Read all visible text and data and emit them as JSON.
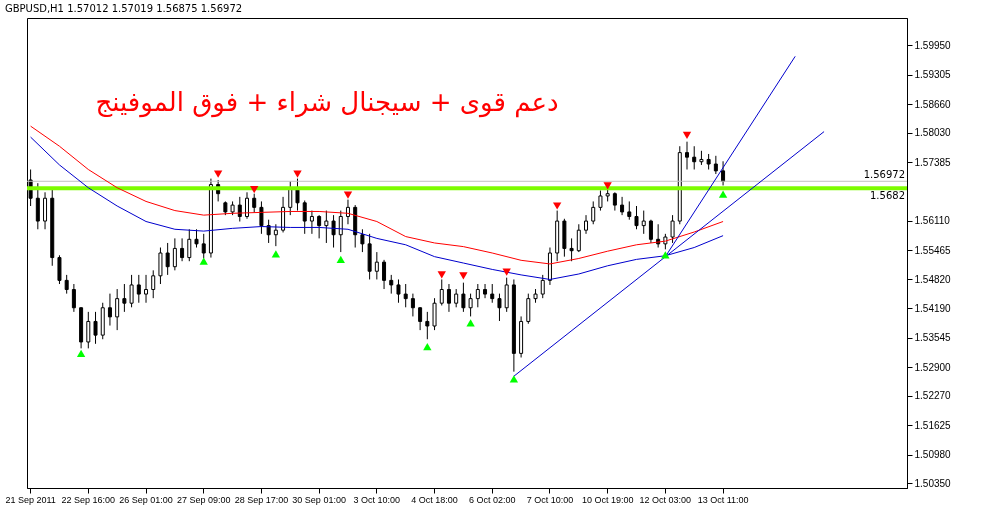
{
  "chart_data": {
    "type": "candlestick",
    "title": "GBPUSD,H1  1.57012 1.57019 1.56875 1.56972",
    "annotations": [
      "دعم قوى + سيجنال شراء + فوق الموفينج"
    ],
    "categories": [
      "21 Sep 2011",
      null,
      null,
      null,
      null,
      null,
      null,
      null,
      "22 Sep 16:00",
      null,
      null,
      null,
      null,
      null,
      null,
      null,
      "26 Sep 01:00",
      null,
      null,
      null,
      null,
      null,
      null,
      null,
      "27 Sep 09:00",
      null,
      null,
      null,
      null,
      null,
      null,
      null,
      "28 Sep 17:00",
      null,
      null,
      null,
      null,
      null,
      null,
      null,
      "30 Sep 01:00",
      null,
      null,
      null,
      null,
      null,
      null,
      null,
      "3 Oct 10:00",
      null,
      null,
      null,
      null,
      null,
      null,
      null,
      "4 Oct 18:00",
      null,
      null,
      null,
      null,
      null,
      null,
      null,
      "6 Oct 02:00",
      null,
      null,
      null,
      null,
      null,
      null,
      null,
      "7 Oct 10:00",
      null,
      null,
      null,
      null,
      null,
      null,
      null,
      "10 Oct 19:00",
      null,
      null,
      null,
      null,
      null,
      null,
      null,
      "12 Oct 03:00",
      null,
      null,
      null,
      null,
      null,
      null,
      null,
      "13 Oct 11:00",
      null,
      null,
      null,
      null,
      null,
      null,
      null,
      null,
      null,
      null,
      null,
      null,
      null,
      null,
      null,
      null,
      null,
      null,
      null,
      null,
      null,
      null,
      null,
      null,
      null
    ],
    "ohlc": [
      [
        1.57,
        1.5723,
        1.5643,
        1.566
      ],
      [
        1.566,
        1.5693,
        1.5592,
        1.561
      ],
      [
        1.561,
        1.5673,
        1.5592,
        1.566
      ],
      [
        1.566,
        1.5683,
        1.5512,
        1.553
      ],
      [
        1.553,
        1.5535,
        1.5472,
        1.548
      ],
      [
        1.548,
        1.5492,
        1.5451,
        1.546
      ],
      [
        1.546,
        1.5472,
        1.5411,
        1.542
      ],
      [
        1.542,
        1.5421,
        1.5331,
        1.5345
      ],
      [
        1.5345,
        1.5411,
        1.5331,
        1.539
      ],
      [
        1.539,
        1.5411,
        1.5341,
        1.536
      ],
      [
        1.536,
        1.5431,
        1.5351,
        1.542
      ],
      [
        1.542,
        1.5451,
        1.5381,
        1.54
      ],
      [
        1.54,
        1.5461,
        1.5371,
        1.544
      ],
      [
        1.544,
        1.5472,
        1.5411,
        1.543
      ],
      [
        1.543,
        1.5492,
        1.5421,
        1.547
      ],
      [
        1.547,
        1.5492,
        1.5431,
        1.545
      ],
      [
        1.545,
        1.5492,
        1.5431,
        1.546
      ],
      [
        1.546,
        1.5502,
        1.5441,
        1.549
      ],
      [
        1.549,
        1.5552,
        1.5472,
        1.554
      ],
      [
        1.554,
        1.5562,
        1.5492,
        1.551
      ],
      [
        1.551,
        1.5572,
        1.5502,
        1.555
      ],
      [
        1.555,
        1.5572,
        1.5522,
        1.553
      ],
      [
        1.553,
        1.5592,
        1.5522,
        1.557
      ],
      [
        1.557,
        1.5592,
        1.5552,
        1.556
      ],
      [
        1.556,
        1.5582,
        1.5528,
        1.554
      ],
      [
        1.554,
        1.5703,
        1.553,
        1.569
      ],
      [
        1.569,
        1.57,
        1.5653,
        1.567
      ],
      [
        1.565,
        1.5653,
        1.5623,
        1.563
      ],
      [
        1.563,
        1.5653,
        1.5623,
        1.5645
      ],
      [
        1.5645,
        1.5663,
        1.5609,
        1.562
      ],
      [
        1.562,
        1.5673,
        1.5615,
        1.566
      ],
      [
        1.566,
        1.567,
        1.5629,
        1.564
      ],
      [
        1.564,
        1.5653,
        1.5582,
        1.56
      ],
      [
        1.56,
        1.5613,
        1.5562,
        1.558
      ],
      [
        1.558,
        1.5603,
        1.5555,
        1.559
      ],
      [
        1.559,
        1.5663,
        1.5585,
        1.564
      ],
      [
        1.564,
        1.5697,
        1.5623,
        1.568
      ],
      [
        1.568,
        1.5703,
        1.5633,
        1.565
      ],
      [
        1.565,
        1.5655,
        1.5582,
        1.561
      ],
      [
        1.561,
        1.5633,
        1.5582,
        1.562
      ],
      [
        1.562,
        1.5623,
        1.5572,
        1.56
      ],
      [
        1.56,
        1.5633,
        1.5562,
        1.561
      ],
      [
        1.561,
        1.5623,
        1.5552,
        1.558
      ],
      [
        1.558,
        1.5633,
        1.5542,
        1.562
      ],
      [
        1.562,
        1.5657,
        1.5603,
        1.564
      ],
      [
        1.564,
        1.5645,
        1.5552,
        1.558
      ],
      [
        1.558,
        1.5592,
        1.5542,
        1.556
      ],
      [
        1.556,
        1.5582,
        1.5482,
        1.55
      ],
      [
        1.55,
        1.5542,
        1.5482,
        1.552
      ],
      [
        1.552,
        1.5525,
        1.5461,
        1.548
      ],
      [
        1.548,
        1.5492,
        1.5451,
        1.547
      ],
      [
        1.547,
        1.5482,
        1.5431,
        1.545
      ],
      [
        1.545,
        1.5472,
        1.5421,
        1.544
      ],
      [
        1.544,
        1.5451,
        1.5401,
        1.542
      ],
      [
        1.542,
        1.5421,
        1.5371,
        1.539
      ],
      [
        1.539,
        1.5411,
        1.5351,
        1.538
      ],
      [
        1.538,
        1.5441,
        1.5371,
        1.543
      ],
      [
        1.543,
        1.5482,
        1.5425,
        1.546
      ],
      [
        1.546,
        1.5472,
        1.5411,
        1.543
      ],
      [
        1.543,
        1.5461,
        1.5421,
        1.545
      ],
      [
        1.545,
        1.5475,
        1.5411,
        1.542
      ],
      [
        1.542,
        1.5451,
        1.5401,
        1.544
      ],
      [
        1.544,
        1.5472,
        1.5421,
        1.546
      ],
      [
        1.546,
        1.5472,
        1.5441,
        1.545
      ],
      [
        1.545,
        1.5472,
        1.5431,
        1.544
      ],
      [
        1.544,
        1.5451,
        1.5391,
        1.542
      ],
      [
        1.542,
        1.5486,
        1.5411,
        1.547
      ],
      [
        1.547,
        1.5482,
        1.528,
        1.532
      ],
      [
        1.532,
        1.5401,
        1.5311,
        1.539
      ],
      [
        1.539,
        1.5451,
        1.5385,
        1.544
      ],
      [
        1.544,
        1.5461,
        1.5431,
        1.545
      ],
      [
        1.545,
        1.5492,
        1.5441,
        1.548
      ],
      [
        1.548,
        1.5552,
        1.547,
        1.554
      ],
      [
        1.554,
        1.5633,
        1.5522,
        1.561
      ],
      [
        1.561,
        1.5615,
        1.5532,
        1.555
      ],
      [
        1.555,
        1.5572,
        1.5522,
        1.5545
      ],
      [
        1.5545,
        1.5603,
        1.5542,
        1.559
      ],
      [
        1.559,
        1.5623,
        1.5582,
        1.561
      ],
      [
        1.561,
        1.5653,
        1.5603,
        1.564
      ],
      [
        1.564,
        1.5677,
        1.5633,
        1.5665
      ],
      [
        1.5665,
        1.5681,
        1.5653,
        1.567
      ],
      [
        1.567,
        1.5673,
        1.5633,
        1.5645
      ],
      [
        1.5645,
        1.5663,
        1.5623,
        1.563
      ],
      [
        1.563,
        1.5653,
        1.5613,
        1.562
      ],
      [
        1.562,
        1.5643,
        1.5592,
        1.56
      ],
      [
        1.56,
        1.5633,
        1.5582,
        1.561
      ],
      [
        1.561,
        1.5613,
        1.5562,
        1.557
      ],
      [
        1.557,
        1.5603,
        1.5552,
        1.556
      ],
      [
        1.556,
        1.5582,
        1.5548,
        1.5575
      ],
      [
        1.5575,
        1.5623,
        1.5562,
        1.561
      ],
      [
        1.561,
        1.5774,
        1.5603,
        1.576
      ],
      [
        1.576,
        1.5784,
        1.5723,
        1.575
      ],
      [
        1.575,
        1.5774,
        1.5723,
        1.574
      ],
      [
        1.574,
        1.5764,
        1.5733,
        1.5745
      ],
      [
        1.5745,
        1.5757,
        1.5723,
        1.5735
      ],
      [
        1.5735,
        1.5753,
        1.5713,
        1.572
      ],
      [
        1.572,
        1.5741,
        1.5688,
        1.5697
      ],
      null,
      null,
      null,
      null,
      null,
      null,
      null,
      null,
      null,
      null,
      null,
      null,
      null,
      null,
      null,
      null,
      null,
      null,
      null,
      null,
      null,
      null,
      null,
      null,
      null
    ],
    "series": [
      {
        "type": "line",
        "color": "#ff0000",
        "values": [
          1.5818,
          null,
          null,
          null,
          1.5774,
          null,
          null,
          null,
          1.5723,
          null,
          null,
          null,
          1.5683,
          null,
          null,
          null,
          1.5653,
          null,
          null,
          null,
          1.5633,
          null,
          null,
          null,
          1.5623,
          null,
          null,
          null,
          1.5627,
          null,
          null,
          null,
          1.5629,
          null,
          null,
          null,
          1.5631,
          null,
          null,
          null,
          1.5631,
          null,
          null,
          null,
          1.5627,
          null,
          null,
          null,
          1.5609,
          null,
          null,
          null,
          1.5576,
          null,
          null,
          null,
          1.5562,
          null,
          null,
          null,
          1.5554,
          null,
          null,
          null,
          1.554,
          null,
          null,
          null,
          1.5524,
          null,
          null,
          null,
          1.5516,
          null,
          null,
          null,
          1.5528,
          null,
          null,
          null,
          1.5544,
          null,
          null,
          null,
          1.5558,
          null,
          null,
          null,
          1.5566,
          null,
          null,
          null,
          1.5586,
          null,
          null,
          null,
          1.5609,
          null,
          null,
          null,
          null,
          null,
          null,
          null,
          null,
          null,
          null,
          null,
          null,
          null,
          null,
          null,
          null,
          null,
          null,
          null,
          null,
          null,
          null,
          null,
          null,
          null
        ]
      },
      {
        "type": "line",
        "color": "#0000cd",
        "values": [
          1.5794,
          null,
          null,
          null,
          1.5733,
          null,
          null,
          null,
          1.5683,
          null,
          null,
          null,
          1.5643,
          null,
          null,
          null,
          1.5609,
          null,
          null,
          null,
          1.5592,
          null,
          null,
          null,
          1.5588,
          null,
          null,
          null,
          1.5594,
          null,
          null,
          null,
          1.5598,
          null,
          null,
          null,
          1.5596,
          null,
          null,
          null,
          1.5596,
          null,
          null,
          null,
          1.5592,
          null,
          null,
          null,
          1.5572,
          null,
          null,
          null,
          1.5558,
          null,
          null,
          null,
          1.5532,
          null,
          null,
          null,
          1.5518,
          null,
          null,
          null,
          1.5504,
          null,
          null,
          null,
          1.5492,
          null,
          null,
          null,
          1.5482,
          null,
          null,
          null,
          1.5494,
          null,
          null,
          null,
          1.5512,
          null,
          null,
          null,
          1.5526,
          null,
          null,
          null,
          1.5534,
          null,
          null,
          null,
          1.5552,
          null,
          null,
          null,
          1.5578,
          null,
          null,
          null,
          null,
          null,
          null,
          null,
          null,
          null,
          null,
          null,
          null,
          null,
          null,
          null,
          null,
          null,
          null,
          null,
          null,
          null,
          null,
          null,
          null,
          null
        ]
      },
      {
        "type": "line",
        "color": "#0000cd",
        "values": [
          null,
          null,
          null,
          null,
          null,
          null,
          null,
          null,
          null,
          null,
          null,
          null,
          null,
          null,
          null,
          null,
          null,
          null,
          null,
          null,
          null,
          null,
          null,
          null,
          null,
          null,
          null,
          null,
          null,
          null,
          null,
          null,
          null,
          null,
          null,
          null,
          null,
          null,
          null,
          null,
          null,
          null,
          null,
          null,
          null,
          null,
          null,
          null,
          null,
          null,
          null,
          null,
          null,
          null,
          null,
          null,
          null,
          null,
          null,
          null,
          null,
          null,
          null,
          null,
          null,
          null,
          null,
          1.527,
          null,
          null,
          null,
          null,
          null,
          null,
          null,
          null,
          null,
          null,
          null,
          null,
          null,
          null,
          null,
          null,
          null,
          null,
          null,
          null,
          null,
          null,
          null,
          null,
          null,
          null,
          null,
          null,
          null,
          null,
          null,
          null,
          null,
          null,
          null,
          null,
          null,
          null,
          null,
          null,
          null,
          null,
          1.5806,
          null,
          null,
          null,
          null,
          null,
          null,
          null,
          null,
          null,
          null,
          null
        ]
      },
      {
        "type": "line",
        "color": "#0000cd",
        "values": [
          null,
          null,
          null,
          null,
          null,
          null,
          null,
          null,
          null,
          null,
          null,
          null,
          null,
          null,
          null,
          null,
          null,
          null,
          null,
          null,
          null,
          null,
          null,
          null,
          null,
          null,
          null,
          null,
          null,
          null,
          null,
          null,
          null,
          null,
          null,
          null,
          null,
          null,
          null,
          null,
          null,
          null,
          null,
          null,
          null,
          null,
          null,
          null,
          null,
          null,
          null,
          null,
          null,
          null,
          null,
          null,
          null,
          null,
          null,
          null,
          null,
          null,
          null,
          null,
          null,
          null,
          null,
          null,
          null,
          null,
          null,
          null,
          null,
          null,
          null,
          null,
          null,
          null,
          null,
          null,
          null,
          null,
          null,
          null,
          null,
          null,
          null,
          null,
          1.5532,
          null,
          null,
          null,
          null,
          null,
          null,
          null,
          null,
          null,
          null,
          null,
          null,
          null,
          null,
          null,
          null,
          null,
          1.5971,
          null,
          null,
          null,
          null,
          null,
          null,
          null,
          null,
          null,
          null,
          null,
          null,
          null,
          null,
          null
        ]
      },
      {
        "type": "scatter",
        "color": "#00ff00",
        "marker": "triangle",
        "values": [
          null,
          null,
          null,
          null,
          null,
          null,
          null,
          1.532,
          null,
          null,
          null,
          null,
          null,
          null,
          null,
          null,
          null,
          null,
          null,
          null,
          null,
          null,
          null,
          null,
          1.5522,
          null,
          null,
          null,
          null,
          null,
          null,
          null,
          null,
          null,
          1.5538,
          null,
          null,
          null,
          null,
          null,
          null,
          null,
          null,
          1.5526,
          null,
          null,
          null,
          null,
          null,
          null,
          null,
          null,
          null,
          null,
          null,
          1.5335,
          null,
          null,
          null,
          null,
          null,
          1.5387,
          null,
          null,
          null,
          null,
          null,
          1.5264,
          null,
          null,
          null,
          null,
          null,
          null,
          null,
          null,
          null,
          null,
          null,
          null,
          null,
          null,
          null,
          null,
          null,
          null,
          null,
          null,
          1.5536,
          null,
          null,
          null,
          null,
          null,
          null,
          null,
          1.5669,
          null,
          null,
          null,
          null,
          null,
          null,
          null,
          null,
          null,
          null,
          null,
          null,
          null,
          null,
          null,
          null,
          null,
          null,
          null,
          null,
          null,
          null,
          null,
          null,
          null
        ]
      },
      {
        "type": "scatter",
        "color": "#ff0000",
        "marker": "triangle",
        "values": [
          null,
          null,
          null,
          null,
          null,
          null,
          null,
          null,
          null,
          null,
          null,
          null,
          null,
          null,
          null,
          null,
          null,
          null,
          null,
          null,
          null,
          null,
          null,
          null,
          null,
          null,
          1.5713,
          null,
          null,
          null,
          null,
          1.5679,
          null,
          null,
          null,
          null,
          null,
          1.5713,
          null,
          null,
          null,
          null,
          null,
          null,
          1.5667,
          null,
          null,
          null,
          null,
          null,
          null,
          null,
          null,
          null,
          null,
          null,
          null,
          1.5492,
          null,
          null,
          1.549,
          null,
          null,
          null,
          null,
          null,
          1.5498,
          null,
          null,
          null,
          null,
          null,
          null,
          1.5643,
          null,
          null,
          null,
          null,
          null,
          null,
          1.5687,
          null,
          null,
          null,
          null,
          null,
          null,
          null,
          null,
          null,
          null,
          1.5798,
          null,
          null,
          null,
          null,
          null,
          null,
          null,
          null,
          null,
          null,
          null,
          null,
          null,
          null,
          null,
          null,
          null,
          null,
          null,
          null,
          null,
          null,
          null,
          null,
          null,
          null,
          null,
          null,
          null,
          null
        ]
      }
    ],
    "ylim": [
      1.5025,
      1.6055
    ],
    "yticks": [
      {
        "value": 1.5035,
        "label": "1.50350"
      },
      {
        "value": 1.5098,
        "label": "1.50980"
      },
      1.51625,
      {
        "value": 1.5227,
        "label": "1.52270"
      },
      {
        "value": 1.529,
        "label": "1.52900"
      },
      1.53545,
      {
        "value": 1.5419,
        "label": "1.54190"
      },
      {
        "value": 1.5482,
        "label": "1.54820"
      },
      1.55465,
      {
        "value": 1.5611,
        "label": "1.56110"
      },
      1.57385,
      {
        "value": 1.5803,
        "label": "1.58030"
      },
      {
        "value": 1.5866,
        "label": "1.58660"
      },
      1.59305,
      {
        "value": 1.5995,
        "label": "1.59950"
      }
    ],
    "ref_lines": [
      {
        "axis": "y",
        "value": 1.56972,
        "label": "1.56972",
        "color": "#c0c0c0"
      },
      {
        "axis": "y",
        "value": 1.5682,
        "label": "1.5682",
        "color": "#7cfc00"
      }
    ]
  }
}
